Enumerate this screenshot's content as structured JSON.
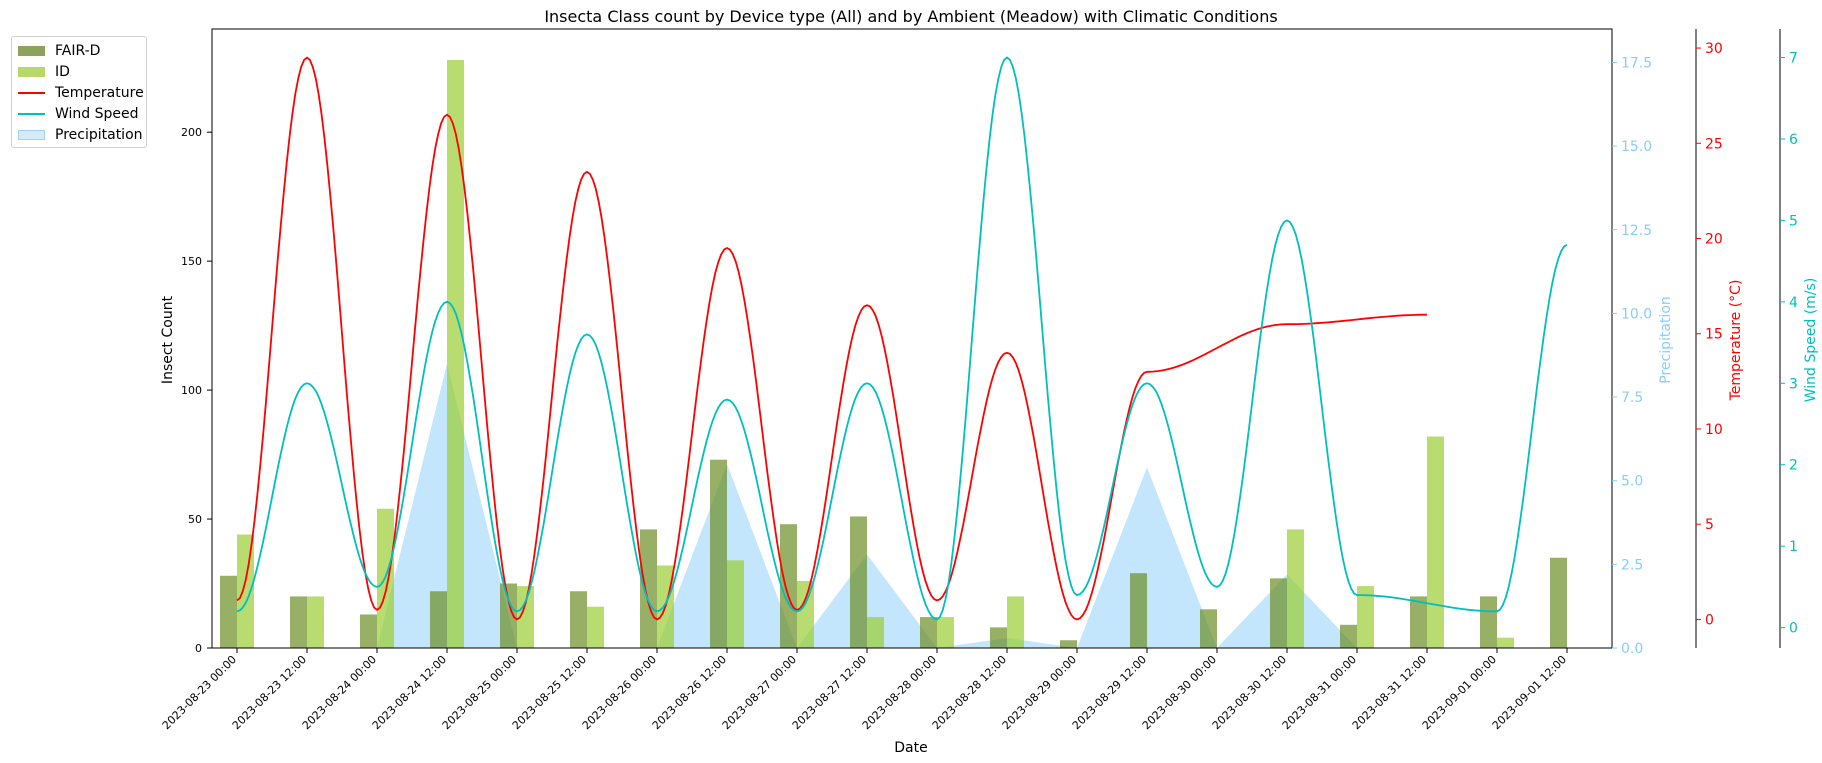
{
  "chart_data": {
    "type": "bar+line+area",
    "title": "Insecta Class count by Device type (All) and by Ambient (Meadow) with Climatic Conditions",
    "xlabel": "Date",
    "x_ticks": [
      "2023-08-23 00:00",
      "2023-08-23 12:00",
      "2023-08-24 00:00",
      "2023-08-24 12:00",
      "2023-08-25 00:00",
      "2023-08-25 12:00",
      "2023-08-26 00:00",
      "2023-08-26 12:00",
      "2023-08-27 00:00",
      "2023-08-27 12:00",
      "2023-08-28 00:00",
      "2023-08-28 12:00",
      "2023-08-29 00:00",
      "2023-08-29 12:00",
      "2023-08-30 00:00",
      "2023-08-30 12:00",
      "2023-08-31 00:00",
      "2023-08-31 12:00",
      "2023-09-01 00:00",
      "2023-09-01 12:00"
    ],
    "axes": {
      "count": {
        "label": "Insect Count",
        "ylim": [
          0,
          240
        ],
        "ticks": [
          0,
          50,
          100,
          150,
          200
        ],
        "color": "#000000"
      },
      "precipitation": {
        "label": "Precipitation",
        "ylim": [
          0,
          18.5
        ],
        "ticks": [
          0.0,
          2.5,
          5.0,
          7.5,
          10.0,
          12.5,
          15.0,
          17.5
        ],
        "color": "#87cefa"
      },
      "temperature": {
        "label": "Temperature (°C)",
        "ylim": [
          -1.5,
          31
        ],
        "ticks": [
          0,
          5,
          10,
          15,
          20,
          25,
          30
        ],
        "color": "#ff0000"
      },
      "wind": {
        "label": "Wind Speed (m/s)",
        "ylim": [
          -0.25,
          7.35
        ],
        "ticks": [
          0,
          1,
          2,
          3,
          4,
          5,
          6,
          7
        ],
        "color": "#00bfbf"
      }
    },
    "bars": [
      {
        "name": "FAIR-D",
        "color": "#6b8e23",
        "values": [
          28,
          20,
          13,
          22,
          25,
          22,
          46,
          73,
          48,
          51,
          12,
          8,
          3,
          29,
          15,
          27,
          9,
          20,
          20,
          35
        ]
      },
      {
        "name": "ID",
        "color": "#9acd32",
        "values": [
          44,
          20,
          54,
          228,
          24,
          16,
          32,
          34,
          26,
          12,
          12,
          20,
          null,
          null,
          null,
          46,
          24,
          82,
          4,
          null
        ]
      }
    ],
    "precipitation": {
      "name": "Precipitation",
      "color": "#87cefa",
      "values": [
        0,
        0,
        0,
        8.5,
        0,
        0,
        0,
        5.5,
        0,
        2.8,
        0,
        0.3,
        0,
        5.4,
        0,
        2.2,
        0,
        null,
        null,
        null
      ]
    },
    "temperature": {
      "name": "Temperature",
      "color": "#ff0000",
      "min": [
        1,
        0.5,
        0,
        0,
        0.5,
        1,
        0
      ],
      "peak": [
        29.5,
        26.5,
        23.5,
        19.5,
        16.5,
        14,
        13,
        15.5,
        16
      ]
    },
    "wind_speed": {
      "name": "Wind Speed",
      "color": "#00bfbf",
      "min": [
        0.2,
        0.5,
        0.2,
        0.2,
        0.2,
        0.1,
        0.4,
        0.5,
        0.4,
        0.2
      ],
      "peak": [
        3.0,
        4.0,
        3.6,
        2.8,
        3.0,
        7.0,
        3.0,
        5.0
      ]
    }
  },
  "legend": [
    {
      "label": "FAIR-D",
      "kind": "patch",
      "color": "#8da35a"
    },
    {
      "label": "ID",
      "kind": "patch",
      "color": "#b6d96a"
    },
    {
      "label": "Temperature",
      "kind": "line",
      "color": "#ff0000"
    },
    {
      "label": "Wind Speed",
      "kind": "line",
      "color": "#00bfbf"
    },
    {
      "label": "Precipitation",
      "kind": "area",
      "color": "#d6ebfa",
      "border": "#9fd3f5"
    }
  ]
}
